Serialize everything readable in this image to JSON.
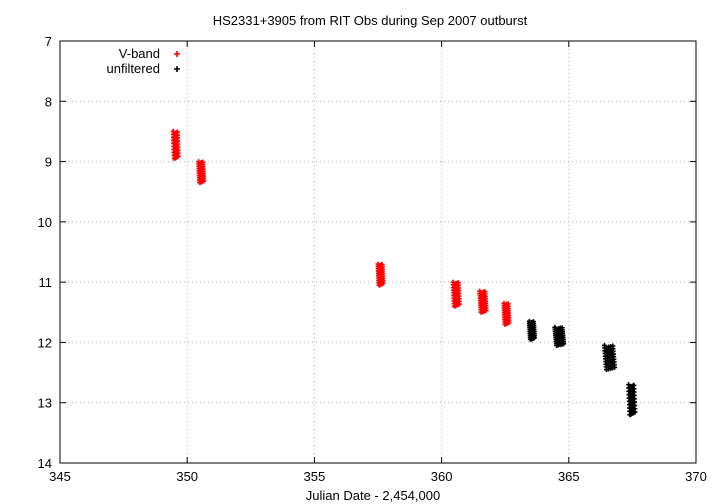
{
  "chart_data": {
    "type": "scatter",
    "title": "HS2331+3905 from RIT Obs during Sep 2007 outburst",
    "xlabel": "Julian Date - 2,454,000",
    "ylabel": "",
    "xlim": [
      345,
      370
    ],
    "ylim": [
      14,
      7
    ],
    "y_inverted": true,
    "x_ticks": [
      "345",
      "350",
      "355",
      "360",
      "365",
      "370"
    ],
    "y_ticks": [
      "7",
      "8",
      "9",
      "10",
      "11",
      "12",
      "13",
      "14"
    ],
    "grid": true,
    "legend_position": "top-left",
    "series": [
      {
        "name": "V-band",
        "color": "#ff0000",
        "marker": "+",
        "clusters": [
          {
            "x": [
              349.45,
              349.65
            ],
            "y": [
              8.5,
              8.95
            ]
          },
          {
            "x": [
              350.45,
              350.65
            ],
            "y": [
              9.0,
              9.35
            ]
          },
          {
            "x": [
              357.5,
              357.7
            ],
            "y": [
              10.7,
              11.05
            ]
          },
          {
            "x": [
              360.45,
              360.7
            ],
            "y": [
              11.0,
              11.4
            ]
          },
          {
            "x": [
              361.5,
              361.75
            ],
            "y": [
              11.15,
              11.5
            ]
          },
          {
            "x": [
              362.45,
              362.65
            ],
            "y": [
              11.35,
              11.7
            ]
          }
        ]
      },
      {
        "name": "unfiltered",
        "color": "#000000",
        "marker": "+",
        "clusters": [
          {
            "x": [
              363.45,
              363.65
            ],
            "y": [
              11.65,
              11.95
            ]
          },
          {
            "x": [
              364.45,
              364.8
            ],
            "y": [
              11.75,
              12.05
            ]
          },
          {
            "x": [
              366.4,
              366.8
            ],
            "y": [
              12.05,
              12.45
            ]
          },
          {
            "x": [
              367.35,
              367.6
            ],
            "y": [
              12.7,
              13.2
            ]
          }
        ]
      }
    ]
  }
}
